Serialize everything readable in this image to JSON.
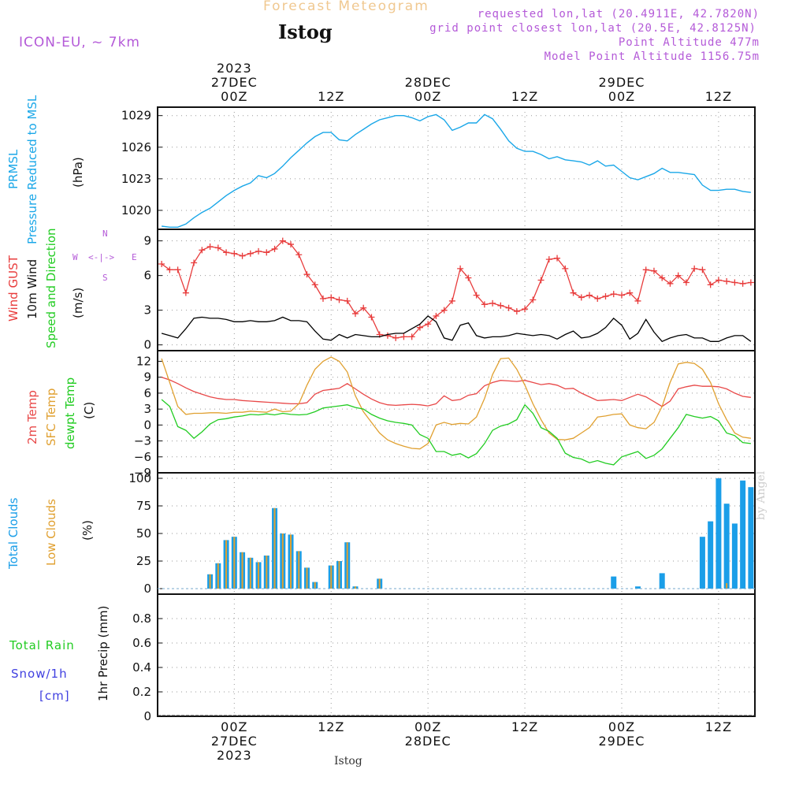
{
  "header": {
    "title": "Forecast Meteogram",
    "station": "Istog",
    "model": "ICON-EU, ~ 7km",
    "requested": "requested lon,lat (20.4911E, 42.7820N)",
    "closest": "grid point closest lon,lat (20.5E, 42.8125N)",
    "point_altitude": "Point Altitude 477m",
    "model_altitude": "Model Point Altitude 1156.75m"
  },
  "footer": {
    "station": "Istog",
    "byline": "by Angel"
  },
  "time_axis": {
    "top": [
      {
        "hour": 0,
        "lines": [
          "2023",
          "27DEC",
          "00Z"
        ]
      },
      {
        "hour": 12,
        "lines": [
          "12Z"
        ]
      },
      {
        "hour": 24,
        "lines": [
          "28DEC",
          "00Z"
        ]
      },
      {
        "hour": 36,
        "lines": [
          "12Z"
        ]
      },
      {
        "hour": 48,
        "lines": [
          "29DEC",
          "00Z"
        ]
      },
      {
        "hour": 60,
        "lines": [
          "12Z"
        ]
      }
    ],
    "bottom": [
      {
        "hour": 0,
        "lines": [
          "00Z",
          "27DEC",
          "2023"
        ]
      },
      {
        "hour": 12,
        "lines": [
          "12Z"
        ]
      },
      {
        "hour": 24,
        "lines": [
          "00Z",
          "28DEC"
        ]
      },
      {
        "hour": 36,
        "lines": [
          "12Z"
        ]
      },
      {
        "hour": 48,
        "lines": [
          "00Z",
          "29DEC"
        ]
      },
      {
        "hour": 60,
        "lines": [
          "12Z"
        ]
      }
    ]
  },
  "colors": {
    "pressure": "#1aa7e8",
    "gust": "#e83c3c",
    "wind": "#000000",
    "temp2m": "#e84848",
    "sfc": "#e0a030",
    "dewpt": "#22cc22",
    "total_clouds": "#1a9ee8",
    "low_clouds": "#e0a030",
    "rain": "#22cc22",
    "snow": "#4040e0",
    "compass": "#b45ad8",
    "grid": "#999999"
  },
  "panels": {
    "pressure": {
      "labels": [
        "PRMSL",
        "Pressure Reduced to MSL",
        "(hPa)"
      ]
    },
    "wind": {
      "labels": [
        "Wind GUST",
        "10m Wind",
        "Speed and Direction",
        "(m/s)"
      ],
      "compass": {
        "n": "N",
        "s": "S",
        "w": "W",
        "e": "E",
        "arrows": "<-|->"
      }
    },
    "temp": {
      "labels": [
        "2m Temp",
        "SFC Temp",
        "dewpt Temp",
        "(C)"
      ]
    },
    "clouds": {
      "labels": [
        "Total Clouds",
        "Low Clouds",
        "(%)"
      ]
    },
    "precip": {
      "labels": [
        "1hr Precip (mm)"
      ],
      "side": [
        "Total  Rain",
        "Snow/1h",
        "[cm]"
      ]
    }
  },
  "chart_data": [
    {
      "type": "line",
      "title": "PRMSL Pressure Reduced to MSL",
      "ylabel": "(hPa)",
      "ylim": [
        1018.2,
        1029.8
      ],
      "yticks": [
        1020,
        1023,
        1026,
        1029
      ],
      "x_hours": [
        -9,
        -8,
        -7,
        -6,
        -5,
        -4,
        -3,
        -2,
        -1,
        0,
        1,
        2,
        3,
        4,
        5,
        6,
        7,
        8,
        9,
        10,
        11,
        12,
        13,
        14,
        15,
        16,
        17,
        18,
        19,
        20,
        21,
        22,
        23,
        24,
        25,
        26,
        27,
        28,
        29,
        30,
        31,
        32,
        33,
        34,
        35,
        36,
        37,
        38,
        39,
        40,
        41,
        42,
        43,
        44,
        45,
        46,
        47,
        48,
        49,
        50,
        51,
        52,
        53,
        54,
        55,
        56,
        57,
        58,
        59,
        60,
        61,
        62,
        63,
        64
      ],
      "series": [
        {
          "name": "PRMSL",
          "values": [
            1018.5,
            1018.4,
            1018.4,
            1018.7,
            1019.3,
            1019.8,
            1020.2,
            1020.8,
            1021.4,
            1021.9,
            1022.3,
            1022.6,
            1023.3,
            1023.1,
            1023.5,
            1024.2,
            1025.0,
            1025.7,
            1026.4,
            1027.0,
            1027.4,
            1027.4,
            1026.7,
            1026.6,
            1027.2,
            1027.7,
            1028.2,
            1028.6,
            1028.8,
            1029.0,
            1029.0,
            1028.8,
            1028.5,
            1028.9,
            1029.1,
            1028.6,
            1027.6,
            1027.9,
            1028.3,
            1028.3,
            1029.1,
            1028.7,
            1027.7,
            1026.6,
            1025.9,
            1025.6,
            1025.6,
            1025.3,
            1024.9,
            1025.1,
            1024.8,
            1024.7,
            1024.6,
            1024.3,
            1024.7,
            1024.2,
            1024.3,
            1023.7,
            1023.1,
            1022.9,
            1023.2,
            1023.5,
            1024.0,
            1023.6,
            1023.6,
            1023.5,
            1023.4,
            1022.4,
            1021.9,
            1021.9,
            1022.0,
            1022.0,
            1021.8,
            1021.7
          ]
        }
      ]
    },
    {
      "type": "line",
      "title": "Wind GUST / 10m Wind Speed and Direction",
      "ylabel": "(m/s)",
      "ylim": [
        -0.5,
        10
      ],
      "yticks": [
        0,
        3,
        6,
        9
      ],
      "x_hours": [
        -9,
        -8,
        -7,
        -6,
        -5,
        -4,
        -3,
        -2,
        -1,
        0,
        1,
        2,
        3,
        4,
        5,
        6,
        7,
        8,
        9,
        10,
        11,
        12,
        13,
        14,
        15,
        16,
        17,
        18,
        19,
        20,
        21,
        22,
        23,
        24,
        25,
        26,
        27,
        28,
        29,
        30,
        31,
        32,
        33,
        34,
        35,
        36,
        37,
        38,
        39,
        40,
        41,
        42,
        43,
        44,
        45,
        46,
        47,
        48,
        49,
        50,
        51,
        52,
        53,
        54,
        55,
        56,
        57,
        58,
        59,
        60,
        61,
        62,
        63,
        64
      ],
      "series": [
        {
          "name": "Wind GUST",
          "values": [
            7.0,
            6.5,
            6.5,
            4.5,
            7.1,
            8.2,
            8.5,
            8.4,
            8.0,
            7.9,
            7.7,
            7.9,
            8.1,
            8.0,
            8.3,
            9.0,
            8.7,
            7.8,
            6.1,
            5.2,
            4.0,
            4.1,
            3.9,
            3.8,
            2.7,
            3.2,
            2.4,
            0.9,
            0.8,
            0.6,
            0.7,
            0.7,
            1.5,
            1.8,
            2.5,
            3.0,
            3.8,
            6.6,
            5.8,
            4.3,
            3.5,
            3.6,
            3.4,
            3.2,
            2.9,
            3.1,
            3.9,
            5.6,
            7.4,
            7.5,
            6.6,
            4.5,
            4.1,
            4.3,
            4.0,
            4.2,
            4.4,
            4.3,
            4.5,
            3.8,
            6.5,
            6.4,
            5.8,
            5.3,
            6.0,
            5.4,
            6.6,
            6.5,
            5.2,
            5.6,
            5.5,
            5.4,
            5.3,
            5.4
          ]
        },
        {
          "name": "10m Wind",
          "values": [
            1.0,
            0.8,
            0.6,
            1.4,
            2.3,
            2.4,
            2.3,
            2.3,
            2.2,
            2.0,
            2.0,
            2.1,
            2.0,
            2.0,
            2.1,
            2.4,
            2.1,
            2.1,
            2.0,
            1.2,
            0.5,
            0.4,
            0.9,
            0.6,
            0.9,
            0.8,
            0.7,
            0.7,
            0.9,
            1.0,
            1.0,
            1.4,
            1.8,
            2.5,
            2.0,
            0.6,
            0.4,
            1.7,
            1.9,
            0.8,
            0.6,
            0.7,
            0.7,
            0.8,
            1.0,
            0.9,
            0.8,
            0.9,
            0.8,
            0.5,
            0.9,
            1.2,
            0.6,
            0.7,
            1.0,
            1.5,
            2.3,
            1.7,
            0.5,
            1.0,
            2.2,
            1.1,
            0.3,
            0.6,
            0.8,
            0.9,
            0.6,
            0.6,
            0.3,
            0.3,
            0.6,
            0.8,
            0.8,
            0.3
          ]
        }
      ]
    },
    {
      "type": "line",
      "title": "2m Temp / SFC Temp / dewpt Temp",
      "ylabel": "(C)",
      "ylim": [
        -9,
        14
      ],
      "yticks": [
        -9,
        -6,
        -3,
        0,
        3,
        6,
        9,
        12
      ],
      "x_hours": [
        -9,
        -8,
        -7,
        -6,
        -5,
        -4,
        -3,
        -2,
        -1,
        0,
        1,
        2,
        3,
        4,
        5,
        6,
        7,
        8,
        9,
        10,
        11,
        12,
        13,
        14,
        15,
        16,
        17,
        18,
        19,
        20,
        21,
        22,
        23,
        24,
        25,
        26,
        27,
        28,
        29,
        30,
        31,
        32,
        33,
        34,
        35,
        36,
        37,
        38,
        39,
        40,
        41,
        42,
        43,
        44,
        45,
        46,
        47,
        48,
        49,
        50,
        51,
        52,
        53,
        54,
        55,
        56,
        57,
        58,
        59,
        60,
        61,
        62,
        63,
        64
      ],
      "series": [
        {
          "name": "2m Temp",
          "values": [
            9.0,
            8.5,
            7.8,
            7.0,
            6.3,
            5.8,
            5.3,
            5.0,
            4.8,
            4.8,
            4.6,
            4.5,
            4.4,
            4.3,
            4.2,
            4.1,
            4.0,
            4.0,
            4.2,
            5.8,
            6.5,
            6.7,
            6.9,
            7.8,
            6.8,
            5.8,
            4.9,
            4.2,
            3.8,
            3.7,
            3.8,
            3.9,
            3.8,
            3.6,
            4.0,
            5.5,
            4.6,
            4.8,
            5.6,
            5.9,
            7.4,
            8.0,
            8.4,
            8.3,
            8.2,
            8.4,
            8.0,
            7.6,
            7.8,
            7.5,
            6.8,
            6.9,
            6.0,
            5.3,
            4.6,
            4.7,
            4.8,
            4.6,
            5.2,
            5.8,
            5.3,
            4.4,
            3.5,
            4.5,
            6.8,
            7.2,
            7.5,
            7.3,
            7.3,
            7.2,
            6.8,
            6.0,
            5.4,
            5.2
          ]
        },
        {
          "name": "SFC Temp",
          "values": [
            12.5,
            8.0,
            3.5,
            2.0,
            2.2,
            2.2,
            2.3,
            2.3,
            2.2,
            2.4,
            2.4,
            2.6,
            2.5,
            2.4,
            3.0,
            2.5,
            2.6,
            4.0,
            7.5,
            10.5,
            12.0,
            12.8,
            12.0,
            10.0,
            5.5,
            2.5,
            0.5,
            -1.5,
            -2.8,
            -3.5,
            -4.0,
            -4.4,
            -4.5,
            -3.5,
            0.0,
            0.5,
            0.1,
            0.3,
            0.2,
            1.5,
            5.0,
            9.5,
            12.5,
            12.6,
            10.5,
            7.5,
            4.0,
            1.0,
            -1.5,
            -2.7,
            -2.8,
            -2.5,
            -1.5,
            -0.5,
            1.5,
            1.7,
            2.0,
            2.1,
            0.0,
            -0.5,
            -0.7,
            0.5,
            3.5,
            8.0,
            11.5,
            11.8,
            11.6,
            10.5,
            8.0,
            4.0,
            1.0,
            -1.5,
            -2.3,
            -2.5
          ]
        },
        {
          "name": "dewpt Temp",
          "values": [
            4.8,
            3.5,
            -0.3,
            -1.0,
            -2.5,
            -1.3,
            0.2,
            1.0,
            1.2,
            1.5,
            1.7,
            2.0,
            1.9,
            2.1,
            1.9,
            2.2,
            2.0,
            1.9,
            2.0,
            2.5,
            3.2,
            3.4,
            3.6,
            3.8,
            3.3,
            3.0,
            2.0,
            1.3,
            0.8,
            0.5,
            0.3,
            0.0,
            -1.8,
            -2.5,
            -5.0,
            -5.0,
            -5.7,
            -5.4,
            -6.2,
            -5.4,
            -3.5,
            -1.0,
            -0.2,
            0.2,
            1.0,
            3.8,
            2.2,
            -0.5,
            -1.2,
            -2.5,
            -5.3,
            -6.1,
            -6.4,
            -7.1,
            -6.7,
            -7.2,
            -7.5,
            -6.0,
            -5.5,
            -5.0,
            -6.3,
            -5.7,
            -4.5,
            -2.5,
            -0.5,
            2.0,
            1.6,
            1.3,
            1.6,
            0.8,
            -1.5,
            -2.0,
            -3.3,
            -3.5
          ]
        }
      ]
    },
    {
      "type": "bar",
      "title": "Total Clouds / Low Clouds",
      "ylabel": "(%)",
      "ylim": [
        -5,
        105
      ],
      "yticks": [
        0,
        25,
        50,
        75,
        100
      ],
      "x_hours": [
        -9,
        -8,
        -7,
        -6,
        -5,
        -4,
        -3,
        -2,
        -1,
        0,
        1,
        2,
        3,
        4,
        5,
        6,
        7,
        8,
        9,
        10,
        11,
        12,
        13,
        14,
        15,
        16,
        17,
        18,
        19,
        20,
        21,
        22,
        23,
        24,
        25,
        26,
        27,
        28,
        29,
        30,
        31,
        32,
        33,
        34,
        35,
        36,
        37,
        38,
        39,
        40,
        41,
        42,
        43,
        44,
        45,
        46,
        47,
        48,
        49,
        50,
        51,
        52,
        53,
        54,
        55,
        56,
        57,
        58,
        59,
        60,
        61,
        62,
        63,
        64
      ],
      "series": [
        {
          "name": "Total Clouds",
          "values": [
            0,
            0,
            0,
            0,
            0,
            0,
            13,
            23,
            44,
            47,
            33,
            28,
            24,
            30,
            73,
            50,
            49,
            34,
            19,
            6,
            0,
            21,
            25,
            42,
            2,
            0,
            0,
            9,
            0,
            0,
            0,
            0,
            0,
            0,
            0,
            0,
            0,
            0,
            0,
            0,
            0,
            0,
            0,
            0,
            0,
            0,
            0,
            0,
            0,
            0,
            0,
            0,
            0,
            0,
            0,
            0,
            11,
            0,
            0,
            2,
            0,
            0,
            14,
            0,
            0,
            0,
            0,
            47,
            61,
            100,
            77,
            59,
            98,
            92
          ]
        },
        {
          "name": "Low Clouds",
          "values": [
            0,
            0,
            0,
            0,
            0,
            0,
            13,
            23,
            44,
            47,
            33,
            28,
            24,
            30,
            73,
            50,
            49,
            34,
            19,
            6,
            0,
            21,
            25,
            42,
            2,
            0,
            0,
            9,
            0,
            0,
            0,
            0,
            0,
            0,
            0,
            0,
            0,
            0,
            0,
            0,
            0,
            0,
            0,
            0,
            0,
            0,
            0,
            0,
            0,
            0,
            0,
            0,
            0,
            0,
            0,
            0,
            0,
            0,
            0,
            0,
            0,
            0,
            0,
            0,
            0,
            0,
            0,
            0,
            0,
            0,
            5,
            0,
            0,
            0
          ]
        }
      ]
    },
    {
      "type": "bar",
      "title": "1hr Precip",
      "ylabel": "1hr Precip (mm)",
      "ylim": [
        0,
        1
      ],
      "yticks": [
        0,
        0.2,
        0.4,
        0.6,
        0.8
      ],
      "series": [
        {
          "name": "Total Rain",
          "values": []
        },
        {
          "name": "Snow/1h",
          "values": []
        }
      ]
    }
  ]
}
